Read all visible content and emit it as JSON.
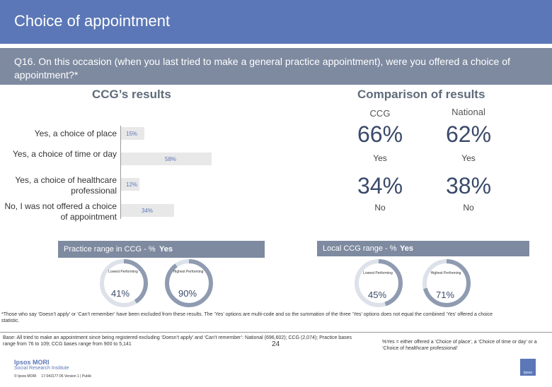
{
  "header": {
    "title": "Choice of appointment"
  },
  "question": "Q16. On this occasion (when you last tried to make a general practice appointment), were you offered a choice of appointment?*",
  "ccg_results": {
    "heading": "CCG’s results",
    "bars": [
      {
        "label": "Yes, a choice of place",
        "value_label": "15%",
        "value": 15
      },
      {
        "label": "Yes, a choice of time or day",
        "value_label": "58%",
        "value": 58
      },
      {
        "label": "Yes, a choice of healthcare professional",
        "value_label": "12%",
        "value": 12
      },
      {
        "label": "No, I was not offered a choice of appointment",
        "value_label": "34%",
        "value": 34
      }
    ]
  },
  "comparison": {
    "heading": "Comparison of results",
    "col_ccg": "CCG",
    "col_national": "National",
    "rows": [
      {
        "ccg": "66%",
        "national": "62%",
        "label_ccg": "Yes",
        "label_national": "Yes"
      },
      {
        "ccg": "34%",
        "national": "38%",
        "label_ccg": "No",
        "label_national": "No"
      }
    ]
  },
  "practice_range": {
    "banner_text": "Practice range in CCG - % ",
    "banner_bold": "Yes",
    "lowest_label": "Lowest Performing",
    "highest_label": "Highest Performing",
    "lowest_value": "41%",
    "highest_value": "90%",
    "lowest": 41,
    "highest": 90
  },
  "local_range": {
    "banner_text": "Local CCG range - % ",
    "banner_bold": "Yes",
    "lowest_label": "Lowest Performing",
    "highest_label": "Highest Performing",
    "lowest_value": "45%",
    "highest_value": "71%",
    "lowest": 45,
    "highest": 71
  },
  "footnotes": {
    "excluded": "*Those who say ‘Doesn’t apply’ or ‘Can’t remember’ have been excluded from these results. The ‘Yes’ options are multi-code and so the summation of the three ‘Yes’ options does not equal the combined ‘Yes’ offered a choice statistic.",
    "base": "Base: All tried to make an appointment since being registered excluding ‘Doesn’t apply’ and ‘Can’t remember’: National (696,602); CCG (2,074); Practice bases range from 76 to 109; CCG bases range from 900 to 5,141",
    "yes_def": "%Yes = either offered a ‘Choice of place’, a ‘Choice of time or day’ or a ‘Choice of healthcare professional’"
  },
  "footer": {
    "logo_line1": "Ipsos MORI",
    "logo_line2": "Social Research Institute",
    "copyright": "© Ipsos MORI     17-043177-06 Version 1 | Public",
    "page_number": "24",
    "badge": "Ipsos"
  },
  "colors": {
    "accent": "#5b77b7",
    "banner": "#7e8aa0",
    "ring": "#8f9bb0"
  }
}
